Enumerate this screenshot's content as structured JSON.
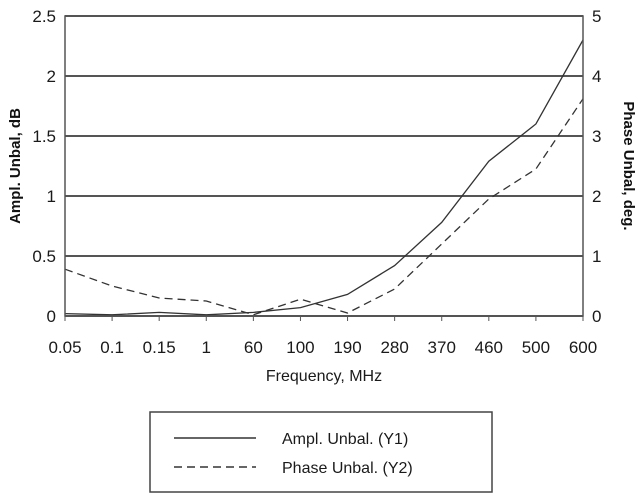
{
  "chart_data": {
    "type": "line",
    "categories": [
      "0.05",
      "0.1",
      "0.15",
      "1",
      "60",
      "100",
      "190",
      "280",
      "370",
      "460",
      "500",
      "600"
    ],
    "xlabel": "Frequency, MHz",
    "ylabel": "Ampl. Unbal, dB",
    "y2label": "Phase Unbal, deg.",
    "ylim": [
      0,
      2.5
    ],
    "y2lim": [
      0,
      5
    ],
    "yticks": [
      "0",
      "0.5",
      "1",
      "1.5",
      "2",
      "2.5"
    ],
    "y2ticks": [
      "0",
      "1",
      "2",
      "3",
      "4",
      "5"
    ],
    "grid": "horizontal",
    "legend_position": "bottom-center",
    "series": [
      {
        "name": "Ampl. Unbal. (Y1)",
        "axis": "left",
        "style": "solid",
        "values": [
          0.02,
          0.01,
          0.03,
          0.01,
          0.03,
          0.07,
          0.18,
          0.42,
          0.78,
          1.29,
          1.6,
          2.3
        ]
      },
      {
        "name": "Phase Unbal. (Y2)",
        "axis": "right",
        "style": "dashed",
        "values": [
          0.78,
          0.5,
          0.3,
          0.25,
          0.02,
          0.28,
          0.05,
          0.45,
          1.2,
          1.95,
          2.45,
          3.62
        ]
      }
    ]
  }
}
